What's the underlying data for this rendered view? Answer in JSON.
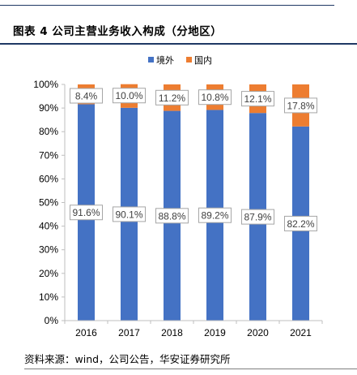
{
  "figure": {
    "title": "图表 4  公司主营业务收入构成（分地区）",
    "source": "资料来源：wind，公司公告，华安证券研究所"
  },
  "chart_data": {
    "type": "bar",
    "stacked": true,
    "categories": [
      "2016",
      "2017",
      "2018",
      "2019",
      "2020",
      "2021"
    ],
    "series": [
      {
        "name": "境外",
        "color": "#4472C4",
        "values": [
          91.6,
          90.1,
          88.8,
          89.2,
          87.9,
          82.2
        ],
        "labels": [
          "91.6%",
          "90.1%",
          "88.8%",
          "89.2%",
          "87.9%",
          "82.2%"
        ]
      },
      {
        "name": "国内",
        "color": "#ED7D31",
        "values": [
          8.4,
          10.0,
          11.2,
          10.8,
          12.1,
          17.8
        ],
        "labels": [
          "8.4%",
          "10.0%",
          "11.2%",
          "10.8%",
          "12.1%",
          "17.8%"
        ]
      }
    ],
    "ylim": [
      0,
      100
    ],
    "yticks": [
      "0%",
      "10%",
      "20%",
      "30%",
      "40%",
      "50%",
      "60%",
      "70%",
      "80%",
      "90%",
      "100%"
    ],
    "grid": false,
    "legend_position": "top-center"
  }
}
